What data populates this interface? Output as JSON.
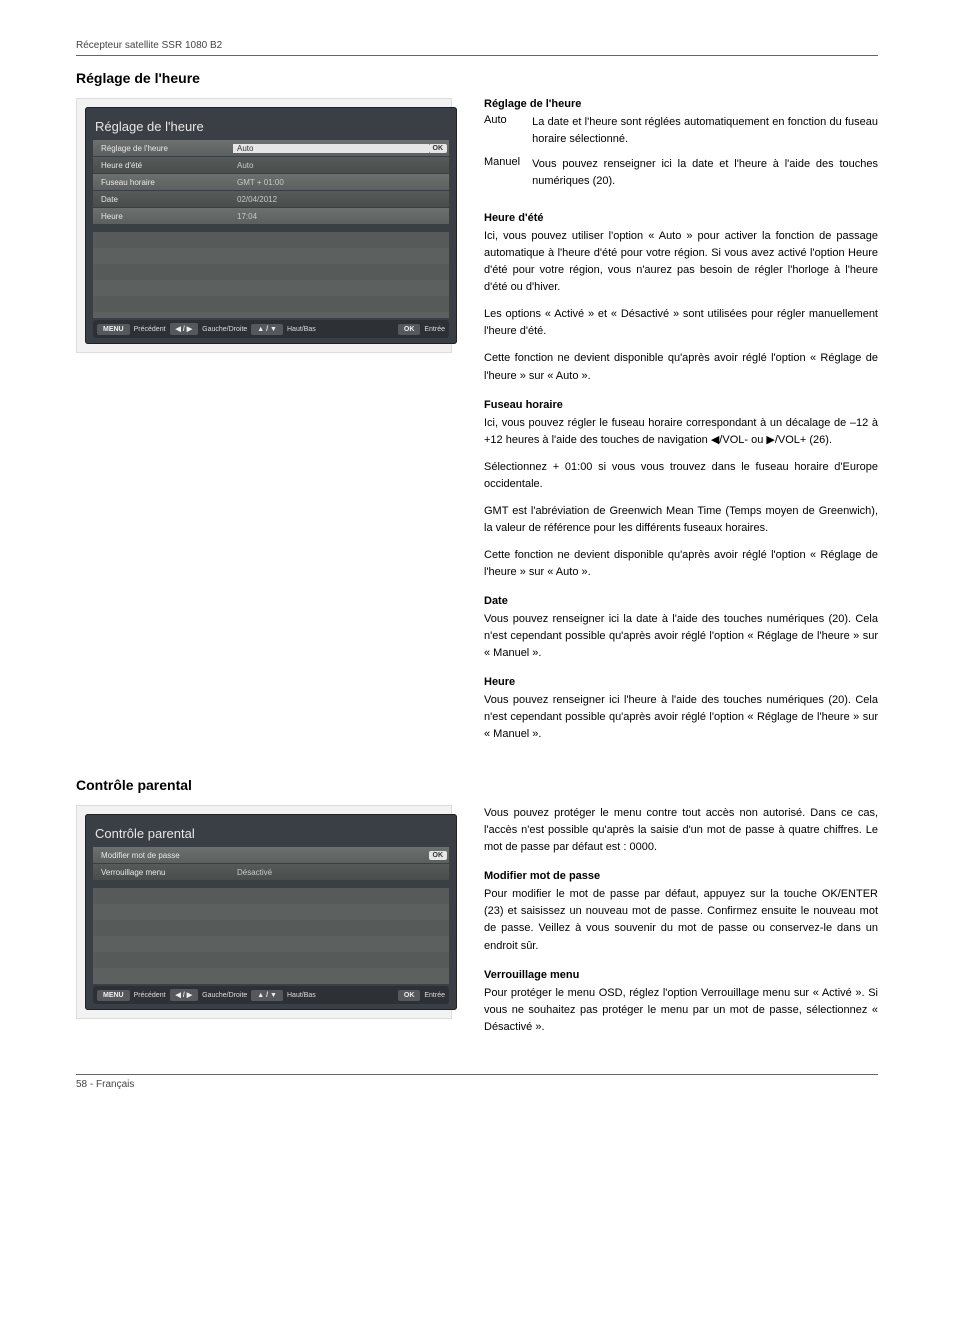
{
  "header": "Récepteur satellite SSR 1080 B2",
  "footer": "58  -  Français",
  "section1": {
    "title": "Réglage de l'heure",
    "osd": {
      "title": "Réglage de l'heure",
      "rows": [
        {
          "label": "Réglage de l'heure",
          "value": "Auto",
          "ok": true,
          "sel": true
        },
        {
          "label": "Heure d'été",
          "value": "Auto"
        },
        {
          "label": "Fuseau horaire",
          "value": "GMT + 01:00"
        },
        {
          "label": "Date",
          "value": "02/04/2012"
        },
        {
          "label": "Heure",
          "value": "17:04"
        }
      ],
      "nav": [
        "MENU",
        "Précédent",
        "◀ / ▶",
        "Gauche/Droite",
        "▲ / ▼",
        "Haut/Bas",
        "OK",
        "Entrée"
      ]
    },
    "h_reglage": "Réglage de l'heure",
    "def_auto_t": "Auto",
    "def_auto_d": "La date et l'heure sont réglées automatiquement en fonction du fuseau horaire sélectionné.",
    "def_man_t": "Manuel",
    "def_man_d": "Vous pouvez renseigner ici la date et l'heure à l'aide des touches numériques (20).",
    "h_ete": "Heure d'été",
    "p_ete_1": "Ici, vous pouvez utiliser l'option « Auto » pour activer la fonction de passage automatique à l'heure d'été pour votre région. Si vous avez activé l'option Heure d'été pour votre région, vous n'aurez pas besoin de régler l'horloge à l'heure d'été ou d'hiver.",
    "p_ete_2": "Les options « Activé » et « Désactivé » sont utilisées pour régler manuellement l'heure d'été.",
    "p_ete_3": "Cette fonction ne devient disponible qu'après avoir réglé l'option « Réglage de l'heure » sur « Auto ».",
    "h_fuseau": "Fuseau horaire",
    "p_f1": "Ici, vous pouvez régler le fuseau horaire correspondant à un décalage de –12 à +12 heures à l'aide des touches de navigation ◀/VOL- ou ▶/VOL+ (26).",
    "p_f2": "Sélectionnez + 01:00 si vous vous trouvez dans le fuseau horaire d'Europe occidentale.",
    "p_f3": "GMT est l'abréviation de Greenwich Mean Time (Temps moyen de Greenwich), la valeur de référence pour les différents fuseaux horaires.",
    "p_f4": "Cette fonction ne devient disponible qu'après avoir réglé l'option « Réglage de l'heure » sur « Auto ».",
    "h_date": "Date",
    "p_d": "Vous pouvez renseigner ici la date à l'aide des touches numériques (20). Cela n'est cependant possible qu'après avoir réglé l'option « Réglage de l'heure » sur « Manuel ».",
    "h_heure": "Heure",
    "p_h": "Vous pouvez renseigner ici l'heure à l'aide des touches numériques (20). Cela n'est cependant possible qu'après avoir réglé l'option « Réglage de l'heure » sur « Manuel »."
  },
  "section2": {
    "title": "Contrôle parental",
    "osd": {
      "title": "Contrôle parental",
      "rows": [
        {
          "label": "Modifier mot de passe",
          "value": "",
          "ok": true,
          "sel": true
        },
        {
          "label": "Verrouillage menu",
          "value": "Désactivé"
        }
      ],
      "nav": [
        "MENU",
        "Précédent",
        "◀ / ▶",
        "Gauche/Droite",
        "▲ / ▼",
        "Haut/Bas",
        "OK",
        "Entrée"
      ]
    },
    "p_intro": "Vous pouvez protéger le menu contre tout accès non autorisé. Dans ce cas, l'accès n'est possible qu'après la saisie d'un mot de passe à quatre chiffres. Le mot de passe par défaut est : 0000.",
    "h_mod": "Modifier mot de passe",
    "p_mod": "Pour modifier le mot de passe par défaut, appuyez sur la touche OK/ENTER (23) et saisissez un nouveau mot de passe. Confirmez ensuite le nouveau mot de passe. Veillez à vous souvenir du mot de passe ou conservez-le dans un endroit sûr.",
    "h_ver": "Verrouillage menu",
    "p_ver": "Pour protéger le menu OSD, réglez l'option Verrouillage menu sur « Activé ». Si vous ne souhaitez pas protéger le menu par un mot de passe, sélectionnez « Désactivé »."
  }
}
